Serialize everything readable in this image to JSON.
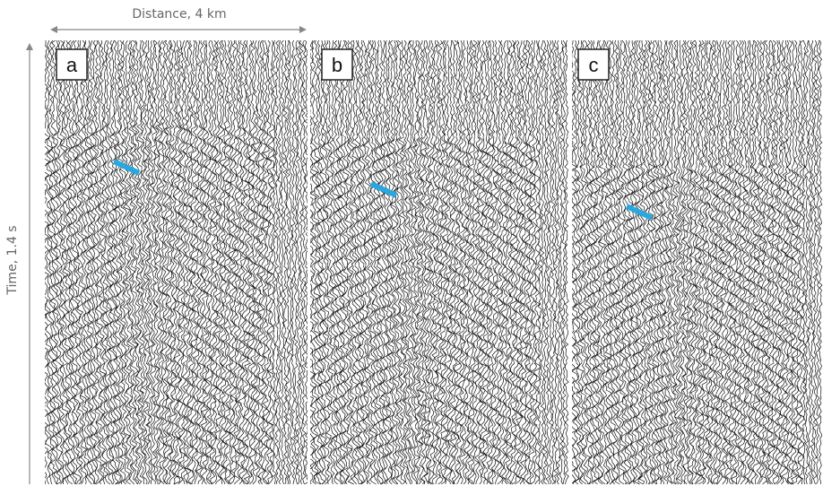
{
  "axes": {
    "distance": "Distance, 4 km",
    "time": "Time, 1.4 s"
  },
  "panels": [
    {
      "label": "a"
    },
    {
      "label": "b"
    },
    {
      "label": "c"
    }
  ]
}
